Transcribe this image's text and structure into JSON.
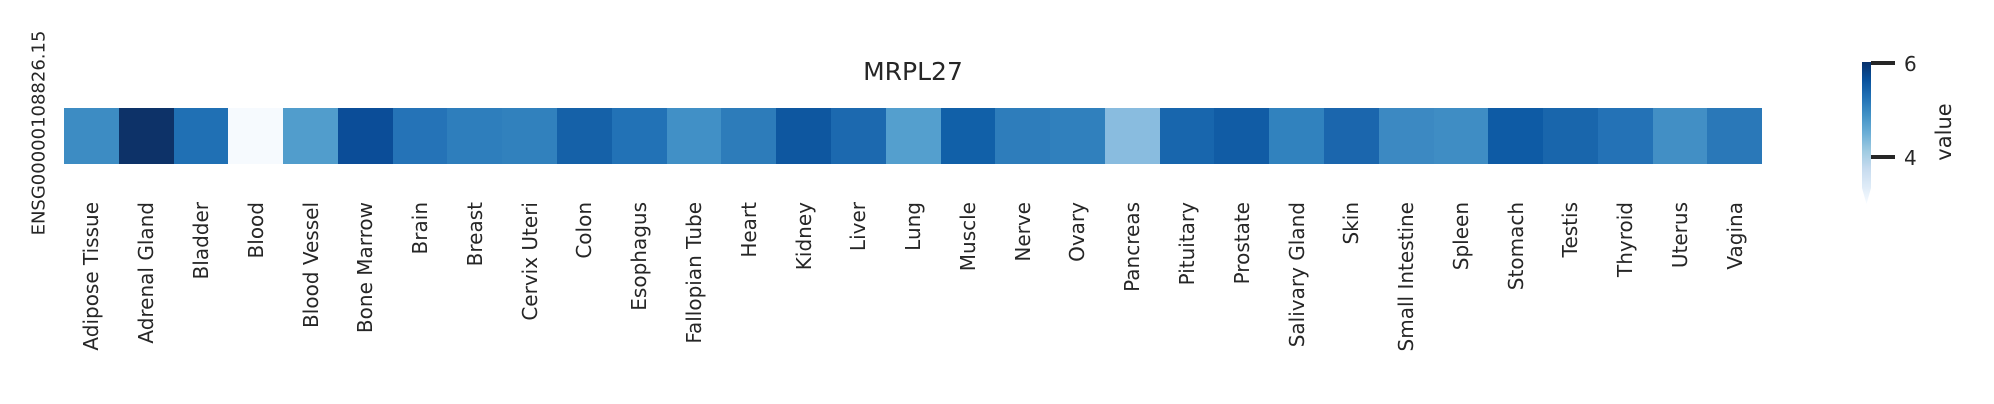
{
  "figure": {
    "title": "MRPL27",
    "row_label": "ENSG00000108826.15",
    "colorbar": {
      "label": "value",
      "tick_labels": [
        "6",
        "4"
      ]
    }
  },
  "chart_data": {
    "type": "heatmap",
    "title": "MRPL27",
    "rows": [
      "ENSG00000108826.15"
    ],
    "columns": [
      "Adipose Tissue",
      "Adrenal Gland",
      "Bladder",
      "Blood",
      "Blood Vessel",
      "Bone Marrow",
      "Brain",
      "Breast",
      "Cervix Uteri",
      "Colon",
      "Esophagus",
      "Fallopian Tube",
      "Heart",
      "Kidney",
      "Liver",
      "Lung",
      "Muscle",
      "Nerve",
      "Ovary",
      "Pancreas",
      "Pituitary",
      "Prostate",
      "Salivary Gland",
      "Skin",
      "Small Intestine",
      "Spleen",
      "Stomach",
      "Testis",
      "Thyroid",
      "Uterus",
      "Vagina"
    ],
    "values": [
      [
        4.94,
        6.01,
        5.27,
        3.03,
        4.76,
        5.65,
        5.24,
        5.12,
        5.09,
        5.45,
        5.26,
        4.91,
        5.15,
        5.59,
        5.38,
        4.73,
        5.47,
        5.14,
        5.11,
        4.3,
        5.41,
        5.53,
        5.09,
        5.42,
        4.98,
        4.94,
        5.55,
        5.39,
        5.24,
        4.92,
        5.18
      ]
    ],
    "cell_colors_hex": [
      [
        "#3d8cc3",
        "#0d3268",
        "#2070b4",
        "#f6fafe",
        "#519dcc",
        "#0b4d98",
        "#2573b7",
        "#2e7ebc",
        "#3181bd",
        "#1561a8",
        "#2272b6",
        "#4190c6",
        "#2d7cba",
        "#0e57a0",
        "#1c69af",
        "#549fce",
        "#1160a8",
        "#2e7dbb",
        "#3080bd",
        "#89bcdf",
        "#1866ad",
        "#115ca5",
        "#3182be",
        "#1b66ad",
        "#3c89c2",
        "#3f8dc4",
        "#0e5ba5",
        "#1966ac",
        "#2472b6",
        "#428fc5",
        "#2a78b8"
      ]
    ],
    "colormap": "Blues",
    "colormap_gradient_dark_to_light": [
      "#08306b",
      "#08519c",
      "#2171b5",
      "#4292c6",
      "#6baed6",
      "#9ecae1",
      "#c6dbef",
      "#deebf7",
      "#f7fbff"
    ],
    "colorbar_label": "value",
    "colorbar_ticks": [
      4,
      6
    ],
    "value_range_approx": [
      3.0,
      6.0
    ],
    "colorbar_position": "right",
    "x_tick_rotation_deg": 90,
    "grid": false,
    "text_color": "#262626"
  }
}
